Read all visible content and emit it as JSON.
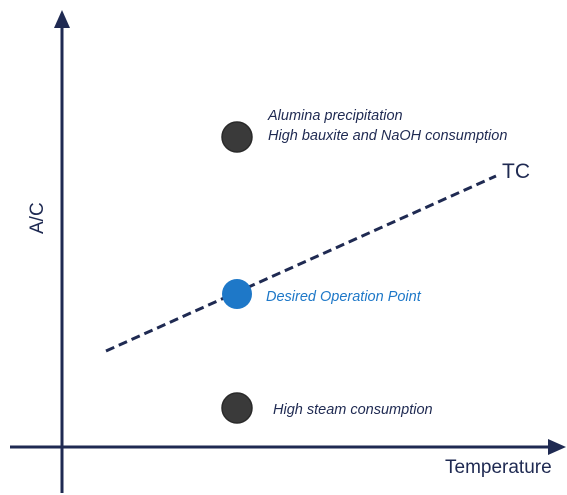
{
  "axes": {
    "x_label": "Temperature",
    "y_label": "A/C"
  },
  "line": {
    "label": "TC",
    "style": "dashed"
  },
  "points": [
    {
      "id": "upper",
      "lines": [
        "Alumina precipitation",
        "High bauxite  and NaOH consumption"
      ],
      "color": "#3a3a3a"
    },
    {
      "id": "desired",
      "lines": [
        "Desired Operation Point"
      ],
      "color": "#1e78c8"
    },
    {
      "id": "lower",
      "lines": [
        "High steam consumption"
      ],
      "color": "#3a3a3a"
    }
  ],
  "colors": {
    "axis": "#1f2a52",
    "dark_point": "#3a3a3a",
    "desired_point": "#1e78c8",
    "text": "#1f2a52"
  }
}
